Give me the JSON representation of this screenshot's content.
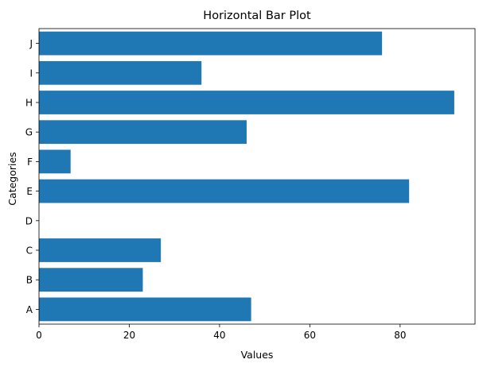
{
  "chart_data": {
    "type": "bar",
    "orientation": "horizontal",
    "title": "Horizontal Bar Plot",
    "xlabel": "Values",
    "ylabel": "Categories",
    "categories": [
      "A",
      "B",
      "C",
      "D",
      "E",
      "F",
      "G",
      "H",
      "I",
      "J"
    ],
    "values": [
      47,
      23,
      27,
      0,
      82,
      7,
      46,
      92,
      36,
      76
    ],
    "xlim": [
      0,
      96.6
    ],
    "xticks": [
      0,
      20,
      40,
      60,
      80
    ],
    "grid": false,
    "bar_color": "#1f77b4"
  }
}
